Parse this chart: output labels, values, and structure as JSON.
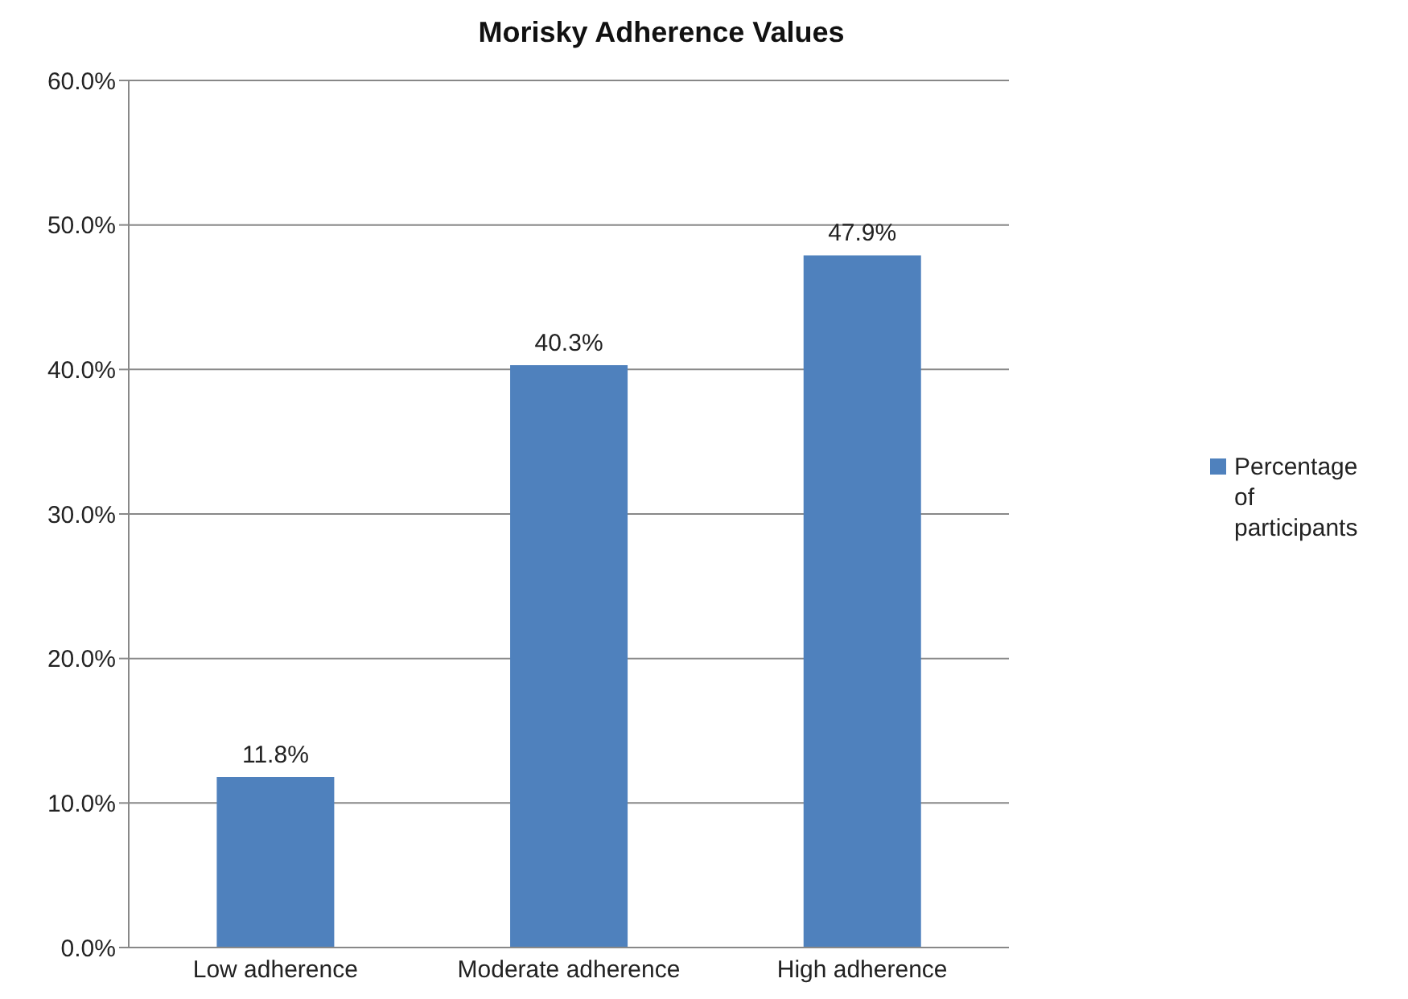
{
  "chart_data": {
    "type": "bar",
    "title": "Morisky Adherence Values",
    "categories": [
      "Low adherence",
      "Moderate adherence",
      "High adherence"
    ],
    "series": [
      {
        "name": "Percentage of participants",
        "color": "#4f81bd",
        "values": [
          11.8,
          40.3,
          47.9
        ]
      }
    ],
    "value_labels": [
      "11.8%",
      "40.3%",
      "47.9%"
    ],
    "ylim": [
      0,
      60
    ],
    "yticks": [
      {
        "value": 0,
        "label": "0.0%"
      },
      {
        "value": 10,
        "label": "10.0%"
      },
      {
        "value": 20,
        "label": "20.0%"
      },
      {
        "value": 30,
        "label": "30.0%"
      },
      {
        "value": 40,
        "label": "40.0%"
      },
      {
        "value": 50,
        "label": "50.0%"
      },
      {
        "value": 60,
        "label": "60.0%"
      }
    ],
    "grid": "y",
    "legend": "right"
  }
}
